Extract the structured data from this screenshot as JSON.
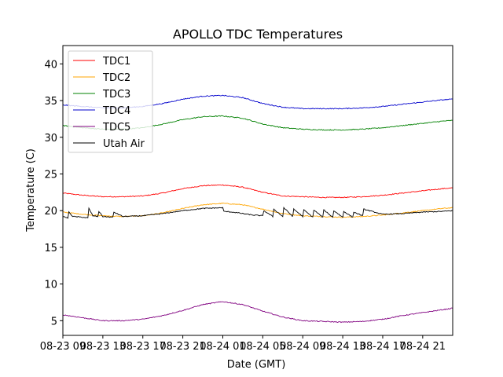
{
  "chart_data": {
    "type": "line",
    "title": "APOLLO TDC Temperatures",
    "xlabel": "Date (GMT)",
    "ylabel": "Temperature (C)",
    "xlim": [
      0,
      39
    ],
    "ylim": [
      3,
      42.5
    ],
    "yticks": [
      5,
      10,
      15,
      20,
      25,
      30,
      35,
      40
    ],
    "xticks": [
      {
        "x": 0,
        "label": "08-23 09"
      },
      {
        "x": 4,
        "label": "08-23 13"
      },
      {
        "x": 8,
        "label": "08-23 17"
      },
      {
        "x": 12,
        "label": "08-23 21"
      },
      {
        "x": 16,
        "label": "08-24 01"
      },
      {
        "x": 20,
        "label": "08-24 05"
      },
      {
        "x": 24,
        "label": "08-24 09"
      },
      {
        "x": 28,
        "label": "08-24 13"
      },
      {
        "x": 32,
        "label": "08-24 17"
      },
      {
        "x": 36,
        "label": "08-24 21"
      }
    ],
    "legend_position": "top-left",
    "series": [
      {
        "name": "TDC1",
        "color": "#ff0000",
        "x": [
          0,
          2,
          4,
          6,
          8,
          10,
          12,
          14,
          16,
          18,
          20,
          22,
          24,
          26,
          28,
          30,
          32,
          34,
          36,
          38,
          39
        ],
        "y": [
          22.4,
          22.1,
          21.9,
          21.9,
          22.0,
          22.4,
          23.0,
          23.4,
          23.5,
          23.2,
          22.5,
          22.0,
          21.9,
          21.8,
          21.8,
          21.9,
          22.1,
          22.4,
          22.7,
          23.0,
          23.1
        ]
      },
      {
        "name": "TDC2",
        "color": "#ffa500",
        "x": [
          0,
          2,
          4,
          6,
          8,
          10,
          12,
          14,
          16,
          18,
          20,
          22,
          24,
          26,
          28,
          30,
          32,
          34,
          36,
          38,
          39
        ],
        "y": [
          19.8,
          19.5,
          19.3,
          19.2,
          19.3,
          19.7,
          20.3,
          20.8,
          21.0,
          20.8,
          20.2,
          19.6,
          19.3,
          19.2,
          19.1,
          19.2,
          19.4,
          19.7,
          20.0,
          20.3,
          20.4
        ]
      },
      {
        "name": "TDC3",
        "color": "#008000",
        "x": [
          0,
          2,
          4,
          6,
          8,
          10,
          12,
          14,
          16,
          18,
          20,
          22,
          24,
          26,
          28,
          30,
          32,
          34,
          36,
          38,
          39
        ],
        "y": [
          31.6,
          31.3,
          31.1,
          31.1,
          31.3,
          31.8,
          32.4,
          32.8,
          32.9,
          32.6,
          31.8,
          31.3,
          31.1,
          31.0,
          31.0,
          31.1,
          31.3,
          31.6,
          31.9,
          32.2,
          32.3
        ]
      },
      {
        "name": "TDC4",
        "color": "#0000cc",
        "x": [
          0,
          2,
          4,
          6,
          8,
          10,
          12,
          14,
          16,
          18,
          20,
          22,
          24,
          26,
          28,
          30,
          32,
          34,
          36,
          38,
          39
        ],
        "y": [
          34.4,
          34.2,
          34.0,
          34.0,
          34.2,
          34.6,
          35.2,
          35.6,
          35.7,
          35.4,
          34.6,
          34.1,
          33.9,
          33.9,
          33.9,
          34.0,
          34.2,
          34.5,
          34.8,
          35.1,
          35.2
        ]
      },
      {
        "name": "TDC5",
        "color": "#800080",
        "x": [
          0,
          2,
          4,
          6,
          8,
          10,
          12,
          14,
          16,
          18,
          20,
          22,
          24,
          26,
          28,
          30,
          32,
          34,
          36,
          38,
          39
        ],
        "y": [
          5.8,
          5.4,
          5.0,
          5.0,
          5.2,
          5.7,
          6.4,
          7.2,
          7.6,
          7.2,
          6.3,
          5.5,
          5.0,
          4.9,
          4.8,
          4.9,
          5.2,
          5.7,
          6.1,
          6.5,
          6.7
        ]
      },
      {
        "name": "Utah Air",
        "color": "#000000",
        "x": [
          0,
          0.5,
          0.6,
          1,
          2,
          2.5,
          2.6,
          3,
          3.5,
          3.6,
          4,
          5,
          5.1,
          6,
          8,
          10,
          12,
          14,
          16,
          16.1,
          17,
          18,
          19,
          20,
          20.1,
          21,
          21.1,
          22,
          22.1,
          23,
          23.1,
          24,
          24.1,
          25,
          25.1,
          26,
          26.1,
          27,
          27.1,
          28,
          28.1,
          29,
          29.1,
          30,
          30.1,
          32,
          34,
          36,
          38,
          39
        ],
        "y": [
          19.2,
          19.0,
          19.8,
          19.2,
          19.1,
          19.0,
          20.3,
          19.3,
          19.2,
          19.9,
          19.2,
          19.1,
          19.8,
          19.2,
          19.3,
          19.6,
          20.0,
          20.3,
          20.4,
          19.9,
          19.8,
          19.6,
          19.4,
          19.3,
          20.0,
          19.2,
          20.2,
          19.2,
          20.4,
          19.2,
          20.2,
          19.2,
          20.1,
          19.1,
          20.1,
          19.1,
          20.1,
          19.1,
          20.0,
          19.1,
          19.9,
          19.1,
          19.8,
          19.3,
          20.2,
          19.5,
          19.6,
          19.8,
          19.9,
          20.0
        ]
      }
    ]
  }
}
